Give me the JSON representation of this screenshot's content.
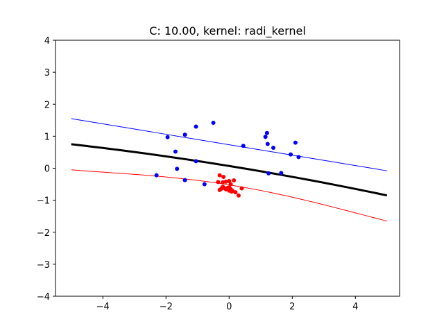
{
  "chart_data": {
    "type": "scatter",
    "title": "C: 10.00, kernel: radi_kernel",
    "xlabel": "",
    "ylabel": "",
    "xlim": [
      -5.5,
      5.4
    ],
    "ylim": [
      -4,
      4
    ],
    "xticks": [
      -4,
      -2,
      0,
      2,
      4
    ],
    "yticks": [
      -4,
      -3,
      -2,
      -1,
      0,
      1,
      2,
      3,
      4
    ],
    "xtick_labels": [
      "−4",
      "−2",
      "0",
      "2",
      "4"
    ],
    "ytick_labels": [
      "−4",
      "−3",
      "−2",
      "−1",
      "0",
      "1",
      "2",
      "3",
      "4"
    ],
    "grid": false,
    "series": [
      {
        "kind": "points",
        "color": "#0000ff",
        "x": [
          -0.5,
          -1.05,
          -1.4,
          -1.95,
          -1.7,
          -1.05,
          -1.65,
          -2.3,
          -1.4,
          -0.78,
          0.45,
          1.2,
          1.15,
          1.22,
          1.4,
          1.95,
          2.1,
          2.2,
          1.65,
          1.25
        ],
        "y": [
          1.42,
          1.3,
          1.05,
          0.97,
          0.52,
          0.22,
          -0.02,
          -0.22,
          -0.37,
          -0.5,
          0.7,
          1.1,
          0.98,
          0.76,
          0.64,
          0.43,
          0.8,
          0.35,
          -0.15,
          -0.16
        ]
      },
      {
        "kind": "points",
        "color": "#ff0000",
        "x": [
          -0.3,
          -0.18,
          -0.35,
          -0.2,
          -0.1,
          0.0,
          0.15,
          0.05,
          0.0,
          -0.2,
          -0.15,
          -0.05,
          0.1,
          0.2,
          0.3,
          0.05,
          -0.1,
          0.0,
          0.4,
          -0.3,
          -0.25,
          0.08
        ],
        "y": [
          -0.22,
          -0.27,
          -0.43,
          -0.44,
          -0.42,
          -0.4,
          -0.38,
          -0.5,
          -0.6,
          -0.58,
          -0.62,
          -0.62,
          -0.7,
          -0.75,
          -0.85,
          -0.65,
          -0.66,
          -0.7,
          -0.63,
          -0.68,
          -0.64,
          -0.73
        ]
      },
      {
        "kind": "line",
        "color": "#0000ff",
        "width": 1,
        "x": [
          -5,
          5
        ],
        "y": [
          1.55,
          -0.08
        ]
      },
      {
        "kind": "line",
        "color": "#000000",
        "width": 3,
        "x": [
          -5,
          0,
          5
        ],
        "y": [
          0.75,
          0.07,
          -0.85
        ]
      },
      {
        "kind": "line",
        "color": "#ff0000",
        "width": 1,
        "x": [
          -5,
          -2.5,
          0,
          2.5,
          5
        ],
        "y": [
          -0.05,
          -0.23,
          -0.52,
          -1.02,
          -1.65
        ]
      }
    ]
  }
}
